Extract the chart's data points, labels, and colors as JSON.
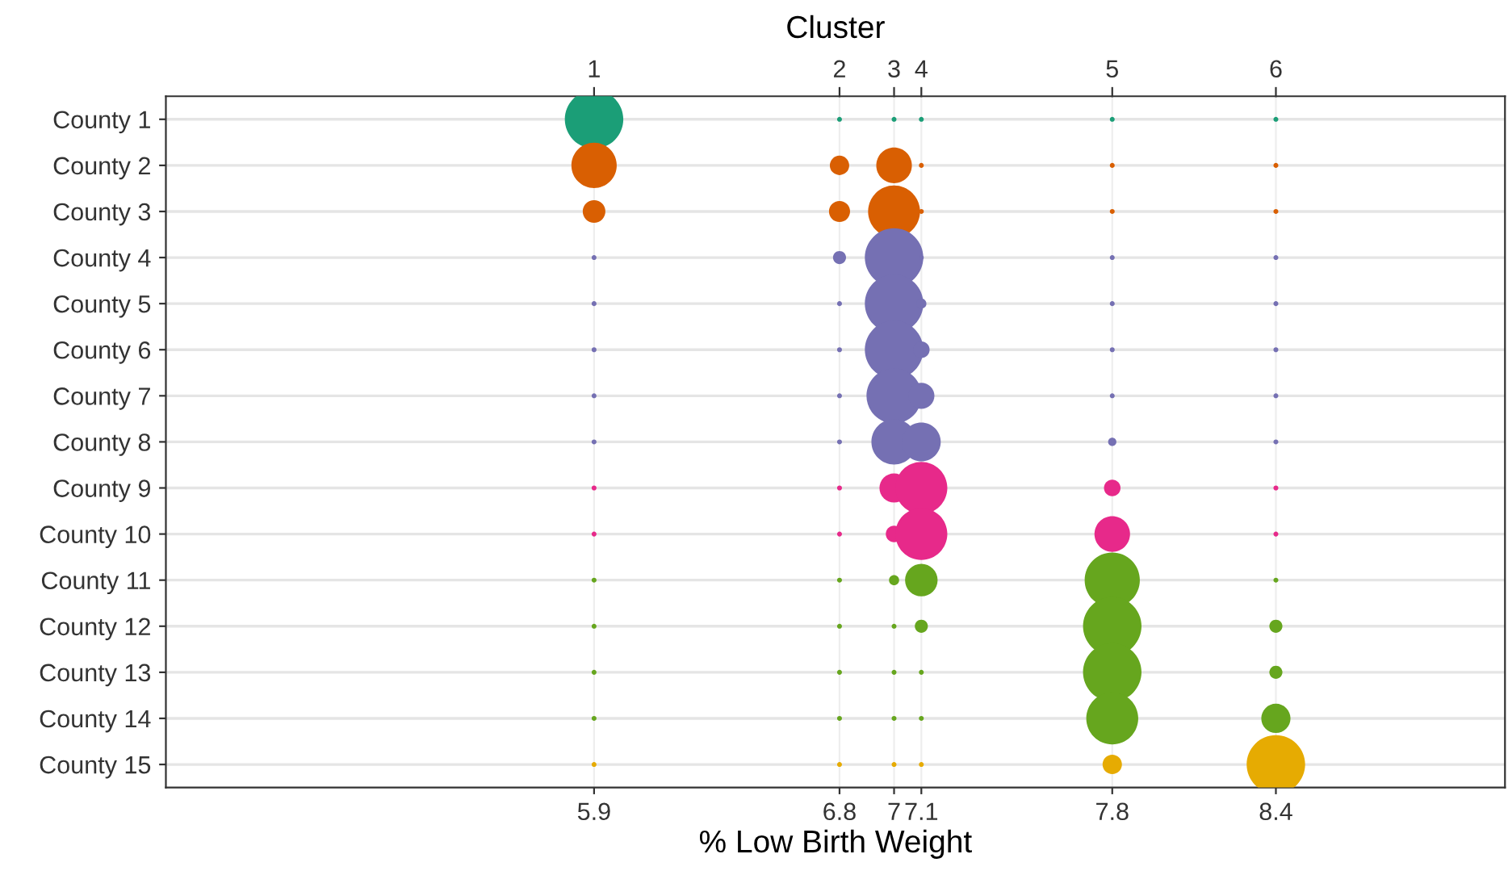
{
  "chart_data": {
    "type": "bubble",
    "orientation": "horizontal",
    "xlabel": "% Low Birth Weight",
    "x2label": "Cluster",
    "categories": [
      "County 1",
      "County 2",
      "County 3",
      "County 4",
      "County 5",
      "County 6",
      "County 7",
      "County 8",
      "County 9",
      "County 10",
      "County 11",
      "County 12",
      "County 13",
      "County 14",
      "County 15"
    ],
    "xlim": [
      4.33,
      9.24
    ],
    "xticks": [
      5.9,
      6.8,
      7,
      7.1,
      7.8,
      8.4
    ],
    "annotations": [
      {
        "text": "1",
        "x": 5.9
      },
      {
        "text": "2",
        "x": 6.8
      },
      {
        "text": "3",
        "x": 7
      },
      {
        "text": "4",
        "x": 7.1
      },
      {
        "text": "5",
        "x": 7.8
      },
      {
        "text": "6",
        "x": 8.4
      }
    ],
    "grid": true,
    "series": [
      {
        "colors": [
          "#1b9e77",
          "#d95f02",
          "#d95f02",
          "#7570b3",
          "#7570b3",
          "#7570b3",
          "#7570b3",
          "#7570b3",
          "#e7298a",
          "#e7298a",
          "#66a61e",
          "#66a61e",
          "#66a61e",
          "#66a61e",
          "#e6ab02"
        ],
        "values": [
          5.9,
          5.9,
          5.9,
          5.9,
          5.9,
          5.9,
          5.9,
          5.9,
          5.9,
          5.9,
          5.9,
          5.9,
          5.9,
          5.9,
          5.9
        ],
        "sizes": [
          1,
          0.6,
          0.15,
          0.007,
          0.007,
          0.007,
          0.007,
          0.007,
          0.007,
          0.007,
          0.007,
          0.007,
          0.007,
          0.007,
          0.007
        ]
      },
      {
        "colors": [
          "#1b9e77",
          "#d95f02",
          "#d95f02",
          "#7570b3",
          "#7570b3",
          "#7570b3",
          "#7570b3",
          "#7570b3",
          "#e7298a",
          "#e7298a",
          "#66a61e",
          "#66a61e",
          "#66a61e",
          "#66a61e",
          "#e6ab02"
        ],
        "values": [
          6.8,
          6.8,
          6.8,
          6.8,
          6.8,
          6.8,
          6.8,
          6.8,
          6.8,
          6.8,
          6.8,
          6.8,
          6.8,
          6.8,
          6.8
        ],
        "sizes": [
          0.007,
          0.11,
          0.13,
          0.05,
          0.007,
          0.007,
          0.007,
          0.007,
          0.007,
          0.007,
          0.007,
          0.007,
          0.007,
          0.007,
          0.007
        ]
      },
      {
        "colors": [
          "#1b9e77",
          "#d95f02",
          "#d95f02",
          "#7570b3",
          "#7570b3",
          "#7570b3",
          "#7570b3",
          "#7570b3",
          "#e7298a",
          "#e7298a",
          "#66a61e",
          "#66a61e",
          "#66a61e",
          "#66a61e",
          "#e6ab02"
        ],
        "values": [
          7,
          7,
          7,
          7,
          7,
          7,
          7,
          7,
          7,
          7,
          7,
          7,
          7,
          7,
          7
        ],
        "sizes": [
          0.007,
          0.37,
          0.79,
          1,
          1,
          1,
          0.89,
          0.6,
          0.25,
          0.08,
          0.03,
          0.007,
          0.007,
          0.007,
          0.007
        ]
      },
      {
        "colors": [
          "#1b9e77",
          "#d95f02",
          "#d95f02",
          "#7570b3",
          "#7570b3",
          "#7570b3",
          "#7570b3",
          "#7570b3",
          "#e7298a",
          "#e7298a",
          "#66a61e",
          "#66a61e",
          "#66a61e",
          "#66a61e",
          "#e6ab02"
        ],
        "values": [
          7.1,
          7.1,
          7.1,
          7.1,
          7.1,
          7.1,
          7.1,
          7.1,
          7.1,
          7.1,
          7.1,
          7.1,
          7.1,
          7.1,
          7.1
        ],
        "sizes": [
          0.007,
          0.007,
          0.007,
          0.007,
          0.03,
          0.08,
          0.2,
          0.44,
          0.79,
          0.79,
          0.31,
          0.05,
          0.007,
          0.007,
          0.007
        ]
      },
      {
        "colors": [
          "#1b9e77",
          "#d95f02",
          "#d95f02",
          "#7570b3",
          "#7570b3",
          "#7570b3",
          "#7570b3",
          "#7570b3",
          "#e7298a",
          "#e7298a",
          "#66a61e",
          "#66a61e",
          "#66a61e",
          "#66a61e",
          "#e6ab02"
        ],
        "values": [
          7.8,
          7.8,
          7.8,
          7.8,
          7.8,
          7.8,
          7.8,
          7.8,
          7.8,
          7.8,
          7.8,
          7.8,
          7.8,
          7.8,
          7.8
        ],
        "sizes": [
          0.007,
          0.007,
          0.007,
          0.007,
          0.007,
          0.007,
          0.007,
          0.02,
          0.08,
          0.37,
          0.89,
          1,
          1,
          0.79,
          0.11
        ]
      },
      {
        "colors": [
          "#1b9e77",
          "#d95f02",
          "#d95f02",
          "#7570b3",
          "#7570b3",
          "#7570b3",
          "#7570b3",
          "#7570b3",
          "#e7298a",
          "#e7298a",
          "#66a61e",
          "#66a61e",
          "#66a61e",
          "#66a61e",
          "#e6ab02"
        ],
        "values": [
          8.4,
          8.4,
          8.4,
          8.4,
          8.4,
          8.4,
          8.4,
          8.4,
          8.4,
          8.4,
          8.4,
          8.4,
          8.4,
          8.4,
          8.4
        ],
        "sizes": [
          0.007,
          0.007,
          0.007,
          0.007,
          0.007,
          0.007,
          0.007,
          0.007,
          0.007,
          0.007,
          0.007,
          0.05,
          0.05,
          0.25,
          1
        ]
      }
    ]
  }
}
